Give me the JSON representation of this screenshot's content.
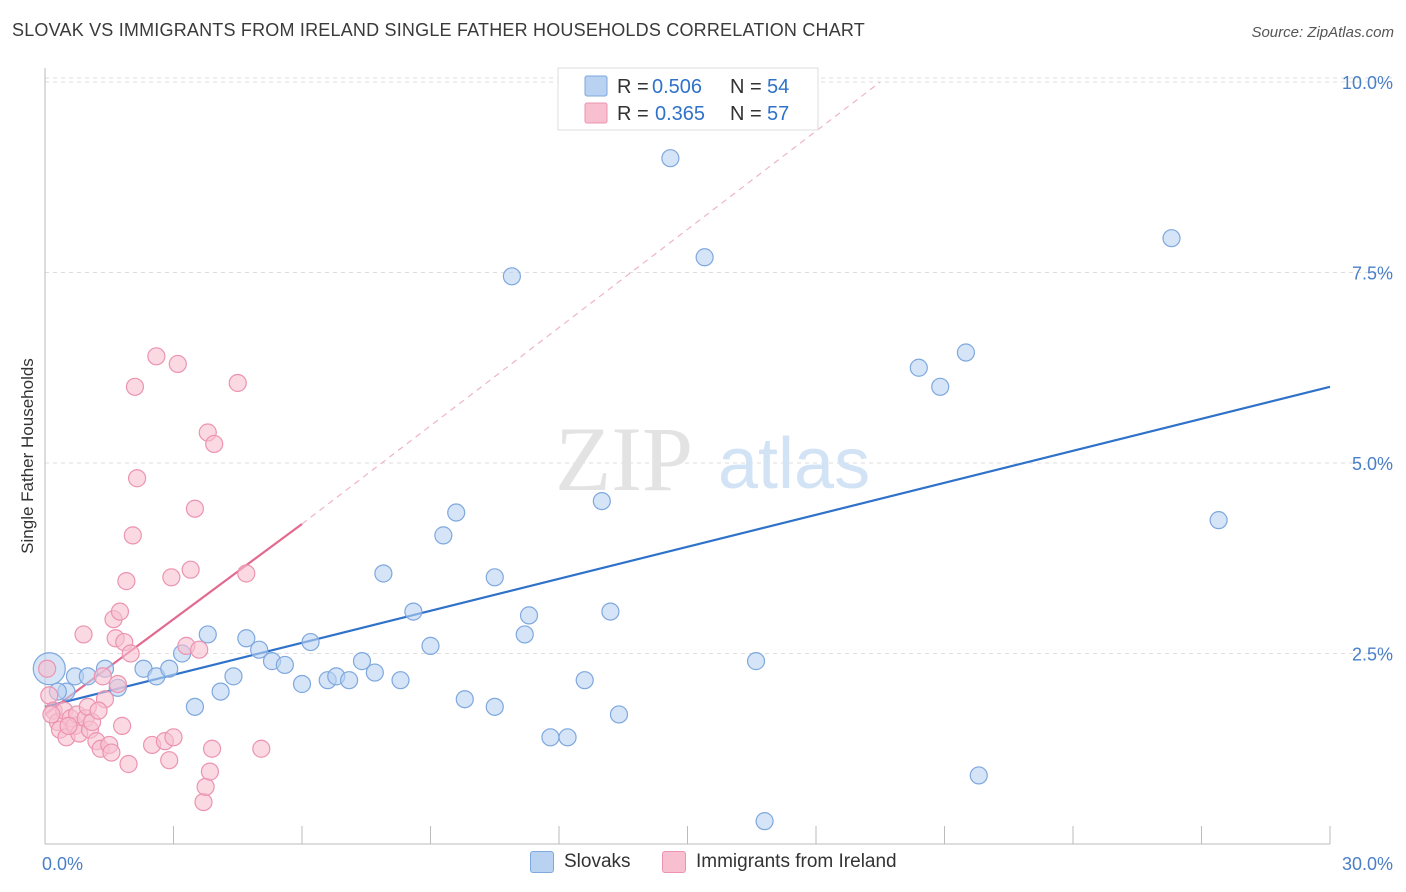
{
  "header": {
    "title": "SLOVAK VS IMMIGRANTS FROM IRELAND SINGLE FATHER HOUSEHOLDS CORRELATION CHART",
    "source": "Source: ZipAtlas.com"
  },
  "watermark": {
    "zip": "ZIP",
    "atlas": "atlas"
  },
  "colors": {
    "blue_fill": "#b9d2f1",
    "blue_stroke": "#7ea8de",
    "blue_line": "#2f72c9",
    "pink_fill": "#f7bfd0",
    "pink_stroke": "#ec93b1",
    "pink_line": "#e3698f",
    "tick_text": "#4a7fc8",
    "grid": "#dddddd"
  },
  "legend": {
    "r_label": "R =",
    "n_label": "N =",
    "entries": [
      {
        "name": "Slovaks",
        "r": "0.506",
        "n": "54"
      },
      {
        "name": "Immigrants from Ireland",
        "r": "0.365",
        "n": "57"
      }
    ]
  },
  "chart_data": {
    "type": "scatter",
    "title": "SLOVAK VS IMMIGRANTS FROM IRELAND SINGLE FATHER HOUSEHOLDS CORRELATION CHART",
    "xlabel": "",
    "ylabel": "Single Father Households",
    "xlim": [
      0,
      30
    ],
    "ylim": [
      0,
      10.5
    ],
    "x_tick_labels": [
      {
        "value": 0,
        "label": "0.0%"
      },
      {
        "value": 30,
        "label": "30.0%"
      }
    ],
    "y_tick_labels": [
      {
        "value": 2.5,
        "label": "2.5%"
      },
      {
        "value": 5.0,
        "label": "5.0%"
      },
      {
        "value": 7.5,
        "label": "7.5%"
      },
      {
        "value": 10.0,
        "label": "10.0%"
      }
    ],
    "x_minor_ticks": [
      0,
      3,
      6,
      9,
      12,
      15,
      18,
      21,
      24,
      27,
      30
    ],
    "grid": true,
    "series": [
      {
        "name": "Slovaks",
        "color": "blue",
        "trend": {
          "x": [
            0,
            30
          ],
          "y": [
            1.8,
            6.0
          ]
        },
        "points": [
          [
            0.1,
            2.3
          ],
          [
            0.5,
            2.0
          ],
          [
            0.7,
            2.2
          ],
          [
            1.0,
            2.2
          ],
          [
            1.4,
            2.3
          ],
          [
            1.7,
            2.05
          ],
          [
            2.3,
            2.3
          ],
          [
            2.6,
            2.2
          ],
          [
            2.9,
            2.3
          ],
          [
            3.2,
            2.5
          ],
          [
            3.5,
            1.8
          ],
          [
            3.8,
            2.75
          ],
          [
            4.1,
            2.0
          ],
          [
            4.4,
            2.2
          ],
          [
            4.7,
            2.7
          ],
          [
            5.0,
            2.55
          ],
          [
            5.3,
            2.4
          ],
          [
            5.6,
            2.35
          ],
          [
            6.0,
            2.1
          ],
          [
            6.2,
            2.65
          ],
          [
            6.6,
            2.15
          ],
          [
            6.8,
            2.2
          ],
          [
            7.1,
            2.15
          ],
          [
            7.4,
            2.4
          ],
          [
            7.7,
            2.25
          ],
          [
            7.9,
            3.55
          ],
          [
            8.3,
            2.15
          ],
          [
            8.6,
            3.05
          ],
          [
            9.0,
            2.6
          ],
          [
            9.3,
            4.05
          ],
          [
            9.6,
            4.35
          ],
          [
            9.8,
            1.9
          ],
          [
            10.5,
            3.5
          ],
          [
            10.5,
            1.8
          ],
          [
            11.2,
            2.75
          ],
          [
            11.3,
            3.0
          ],
          [
            10.9,
            7.45
          ],
          [
            11.8,
            1.4
          ],
          [
            12.2,
            1.4
          ],
          [
            12.6,
            2.15
          ],
          [
            13.0,
            4.5
          ],
          [
            13.2,
            3.05
          ],
          [
            13.4,
            1.7
          ],
          [
            14.6,
            9.0
          ],
          [
            15.4,
            7.7
          ],
          [
            16.6,
            2.4
          ],
          [
            16.8,
            0.3
          ],
          [
            20.4,
            6.25
          ],
          [
            20.9,
            6.0
          ],
          [
            21.5,
            6.45
          ],
          [
            21.8,
            0.9
          ],
          [
            26.3,
            7.95
          ],
          [
            27.4,
            4.25
          ],
          [
            0.3,
            2.0
          ]
        ]
      },
      {
        "name": "Immigrants from Ireland",
        "color": "pink",
        "trend": {
          "x": [
            0,
            6.0
          ],
          "y": [
            1.7,
            4.2
          ]
        },
        "trend_dashed": {
          "x": [
            6.0,
            19.5
          ],
          "y": [
            4.2,
            10.0
          ]
        },
        "points": [
          [
            0.05,
            2.3
          ],
          [
            0.1,
            1.95
          ],
          [
            0.2,
            1.75
          ],
          [
            0.3,
            1.6
          ],
          [
            0.35,
            1.5
          ],
          [
            0.45,
            1.75
          ],
          [
            0.5,
            1.4
          ],
          [
            0.6,
            1.65
          ],
          [
            0.7,
            1.55
          ],
          [
            0.75,
            1.7
          ],
          [
            0.8,
            1.45
          ],
          [
            0.9,
            2.75
          ],
          [
            0.95,
            1.65
          ],
          [
            1.0,
            1.8
          ],
          [
            1.05,
            1.5
          ],
          [
            1.1,
            1.6
          ],
          [
            1.2,
            1.35
          ],
          [
            1.3,
            1.25
          ],
          [
            1.35,
            2.2
          ],
          [
            1.4,
            1.9
          ],
          [
            1.5,
            1.3
          ],
          [
            1.55,
            1.2
          ],
          [
            1.6,
            2.95
          ],
          [
            1.65,
            2.7
          ],
          [
            1.7,
            2.1
          ],
          [
            1.75,
            3.05
          ],
          [
            1.8,
            1.55
          ],
          [
            1.85,
            2.65
          ],
          [
            1.9,
            3.45
          ],
          [
            1.95,
            1.05
          ],
          [
            2.0,
            2.5
          ],
          [
            2.05,
            4.05
          ],
          [
            2.1,
            6.0
          ],
          [
            2.15,
            4.8
          ],
          [
            2.5,
            1.3
          ],
          [
            2.6,
            6.4
          ],
          [
            2.8,
            1.35
          ],
          [
            2.9,
            1.1
          ],
          [
            2.95,
            3.5
          ],
          [
            3.0,
            1.4
          ],
          [
            3.1,
            6.3
          ],
          [
            3.3,
            2.6
          ],
          [
            3.4,
            3.6
          ],
          [
            3.5,
            4.4
          ],
          [
            3.6,
            2.55
          ],
          [
            3.7,
            0.55
          ],
          [
            3.75,
            0.75
          ],
          [
            3.8,
            5.4
          ],
          [
            3.85,
            0.95
          ],
          [
            3.9,
            1.25
          ],
          [
            3.95,
            5.25
          ],
          [
            4.5,
            6.05
          ],
          [
            4.7,
            3.55
          ],
          [
            5.05,
            1.25
          ],
          [
            0.15,
            1.7
          ],
          [
            0.55,
            1.55
          ],
          [
            1.25,
            1.75
          ]
        ]
      }
    ]
  },
  "bottom_legend": [
    {
      "name": "Slovaks"
    },
    {
      "name": "Immigrants from Ireland"
    }
  ]
}
